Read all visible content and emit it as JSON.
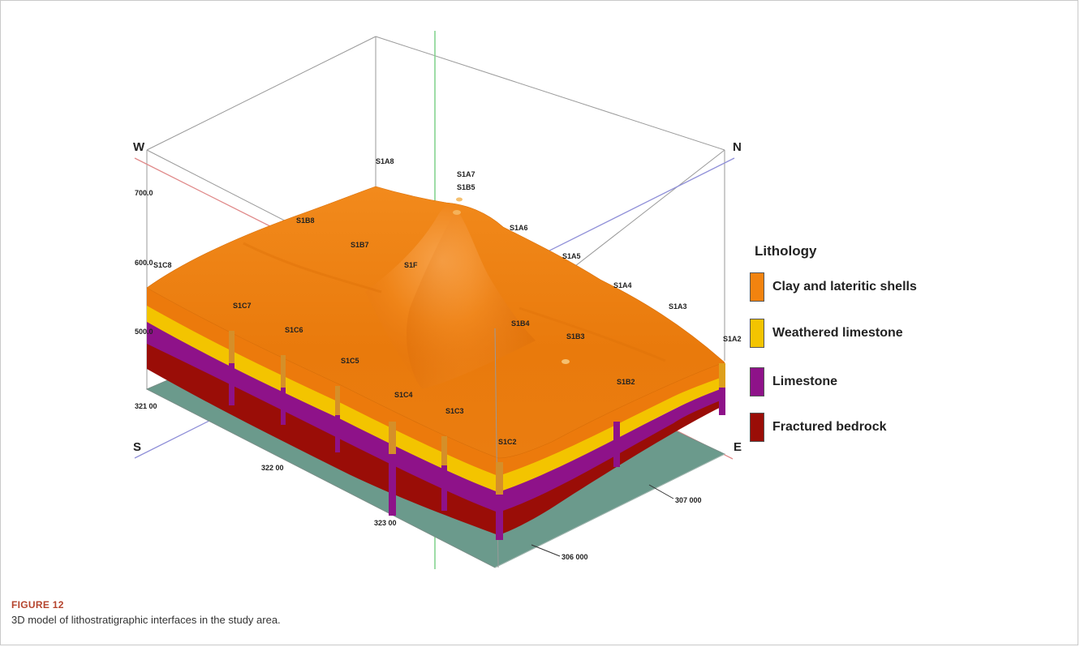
{
  "figure": {
    "label": "FIGURE 12",
    "caption": "3D model of lithostratigraphic interfaces in the study area."
  },
  "compass": {
    "west": "W",
    "north": "N",
    "south": "S",
    "east": "E"
  },
  "elevation_ticks": [
    "700.0",
    "600.0",
    "500.0"
  ],
  "coordinate_ticks": [
    "321 00",
    "322 00",
    "323 00",
    "306 000",
    "307 000"
  ],
  "boreholes": [
    "S1A8",
    "S1A7",
    "S1B5",
    "S1A6",
    "S1A5",
    "S1A4",
    "S1A3",
    "S1A2",
    "S1B8",
    "S1B7",
    "S1F",
    "S1B4",
    "S1B3",
    "S1B2",
    "S1C8",
    "S1C7",
    "S1C6",
    "S1C5",
    "S1C4",
    "S1C3",
    "S1C2"
  ],
  "legend": {
    "title": "Lithology",
    "items": [
      {
        "label": "Clay and lateritic shells",
        "color": "#f2830f"
      },
      {
        "label": "Weathered limestone",
        "color": "#f3c400"
      },
      {
        "label": "Limestone",
        "color": "#8e1289"
      },
      {
        "label": "Fractured bedrock",
        "color": "#9a0d07"
      }
    ]
  },
  "colors": {
    "base_plane": "#6b9a8c",
    "clay": "#f2830f",
    "weathered": "#f3c400",
    "limestone": "#8e1289",
    "bedrock": "#9a0d07"
  }
}
